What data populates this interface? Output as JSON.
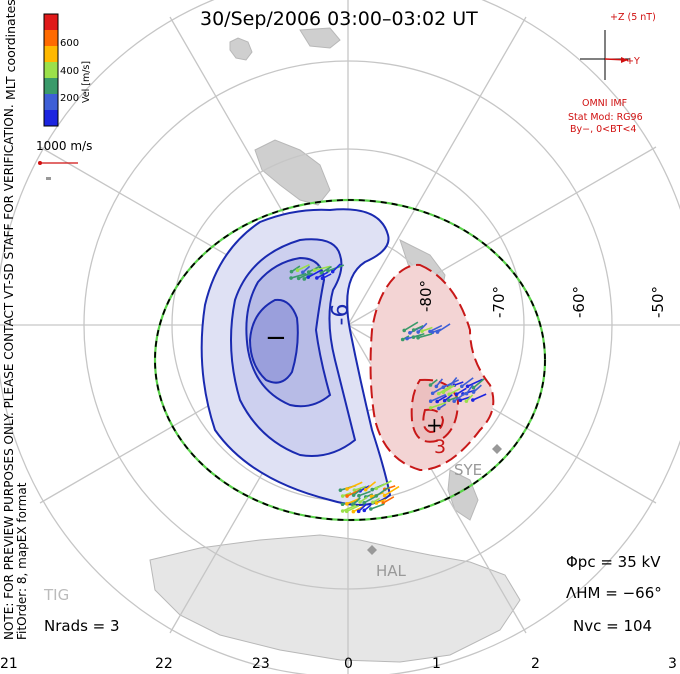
{
  "title": "30/Sep/2006 03:00–03:02 UT",
  "colorbar": {
    "label": "Vel [m/s]",
    "ticks": [
      "600",
      "400",
      "200"
    ],
    "colors": [
      "#e01a1a",
      "#ff6a00",
      "#ffb800",
      "#9be04a",
      "#3a9a6a",
      "#3e5fd6",
      "#1c25e0"
    ]
  },
  "coords_label": "MLT coordinates",
  "vector_scale_label": "1000 m/s",
  "verification_note": "NOTE: FOR PREVIEW PURPOSES ONLY. PLEASE CONTACT VT-SD STAFF FOR VERIFICATION.",
  "fit_info": "FitOrder: 8, mapEX format",
  "imf": {
    "z_label": "+Z (5 nT)",
    "y_label": "+Y",
    "source": "OMNI IMF",
    "model": "Stat Mod: RG96",
    "condition": "By−, 0<BT<4"
  },
  "latitude_labels": [
    "-50°",
    "-60°",
    "-70°",
    "-80°"
  ],
  "mlt_labels": [
    "21",
    "22",
    "23",
    "0",
    "1",
    "2",
    "3"
  ],
  "contour_labels": {
    "neg": "-6",
    "pos": "3"
  },
  "extrema": {
    "min": "−",
    "max": "+"
  },
  "stations": [
    "SYE",
    "HAL",
    "TIG"
  ],
  "stats": {
    "pcp": "Φpc = 35 kV",
    "hm": "ΛHM = −66°",
    "nvc": "Nvc = 104",
    "nrads": "Nrads = 3"
  }
}
